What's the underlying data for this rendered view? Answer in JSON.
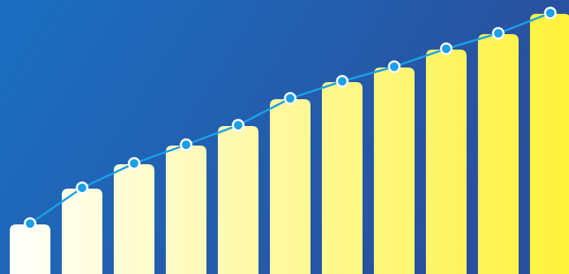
{
  "chart_data": {
    "type": "bar-line",
    "values": [
      61,
      105,
      135,
      158,
      182,
      215,
      236,
      254,
      276,
      295,
      320
    ],
    "ylim": [
      0,
      337
    ],
    "bar_colors": [
      "#ffffff",
      "#fff23a"
    ],
    "line_color": "#1aa0e8",
    "background_colors": [
      "#1b6fc2",
      "#2a4f9c"
    ]
  }
}
